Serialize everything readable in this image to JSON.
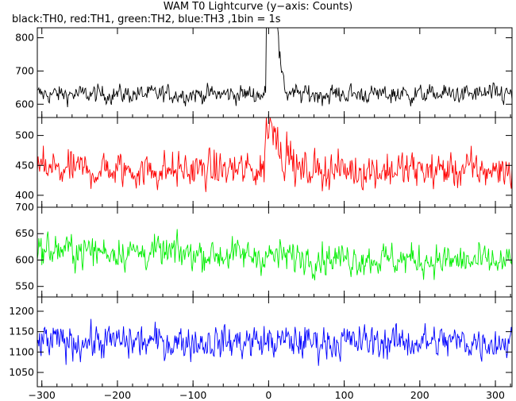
{
  "title": "WAM T0 Lightcurve (y−axis: Counts)",
  "subtitle": "black:TH0, red:TH1, green:TH2, blue:TH3 ,1bin = 1s",
  "chart_data": {
    "type": "line",
    "x": {
      "range": [
        -306,
        322
      ],
      "ticks": [
        -300,
        -200,
        -100,
        0,
        100,
        200,
        300
      ],
      "bin_seconds": 1
    },
    "panels": [
      {
        "name": "TH0",
        "color": "#000000",
        "ylim": [
          560,
          830
        ],
        "yticks": [
          600,
          700,
          800
        ],
        "base": 630,
        "noise": 55,
        "sigma": 20,
        "burst": [
          [
            -3,
            10,
            240
          ],
          [
            6,
            12,
            230
          ],
          [
            13,
            20,
            60
          ]
        ]
      },
      {
        "name": "TH1",
        "color": "#ff0000",
        "ylim": [
          380,
          530
        ],
        "yticks": [
          400,
          450,
          500
        ],
        "base": 442,
        "noise": 70,
        "sigma": 22,
        "burst": [
          [
            -5,
            12,
            60
          ],
          [
            12,
            30,
            20
          ]
        ]
      },
      {
        "name": "TH2",
        "color": "#00ee00",
        "ylim": [
          530,
          700
        ],
        "yticks": [
          550,
          600,
          650,
          700
        ],
        "base": 620,
        "noise": 80,
        "sigma": 22,
        "trend": -0.04,
        "burst": []
      },
      {
        "name": "TH3",
        "color": "#0000ff",
        "ylim": [
          1015,
          1235
        ],
        "yticks": [
          1050,
          1100,
          1150,
          1200
        ],
        "base": 1125,
        "noise": 100,
        "sigma": 30,
        "burst": []
      }
    ]
  }
}
